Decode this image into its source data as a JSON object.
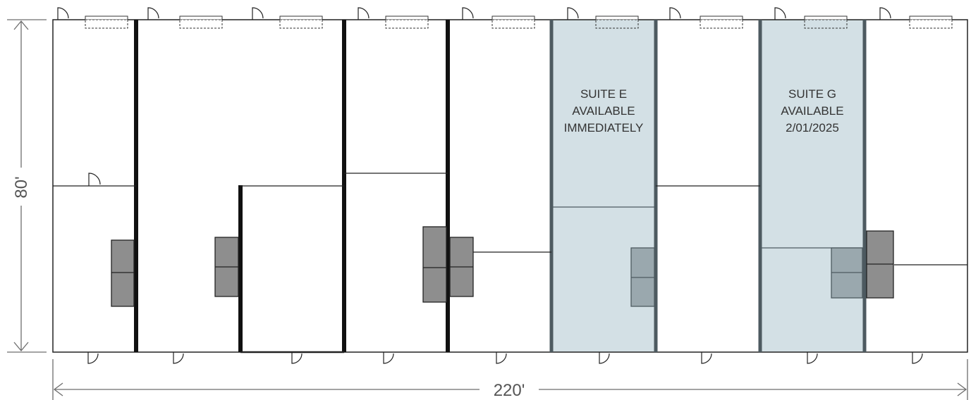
{
  "plan": {
    "suites": [
      {
        "label": "SUITE E",
        "status": "AVAILABLE",
        "date": "IMMEDIATELY",
        "available": true
      },
      {
        "label": "SUITE G",
        "status": "AVAILABLE",
        "date": "2/01/2025",
        "available": true
      }
    ],
    "dimensions": {
      "width_label": "220'",
      "depth_label": "80'"
    }
  },
  "colors": {
    "available_fill": "#d3e0e5",
    "wall": "#111111",
    "available_wall": "#4d5a60",
    "dimension_line": "#6d6d6d",
    "fixture": "#8e8e8e",
    "fixture_available": "#9aa8ae"
  }
}
